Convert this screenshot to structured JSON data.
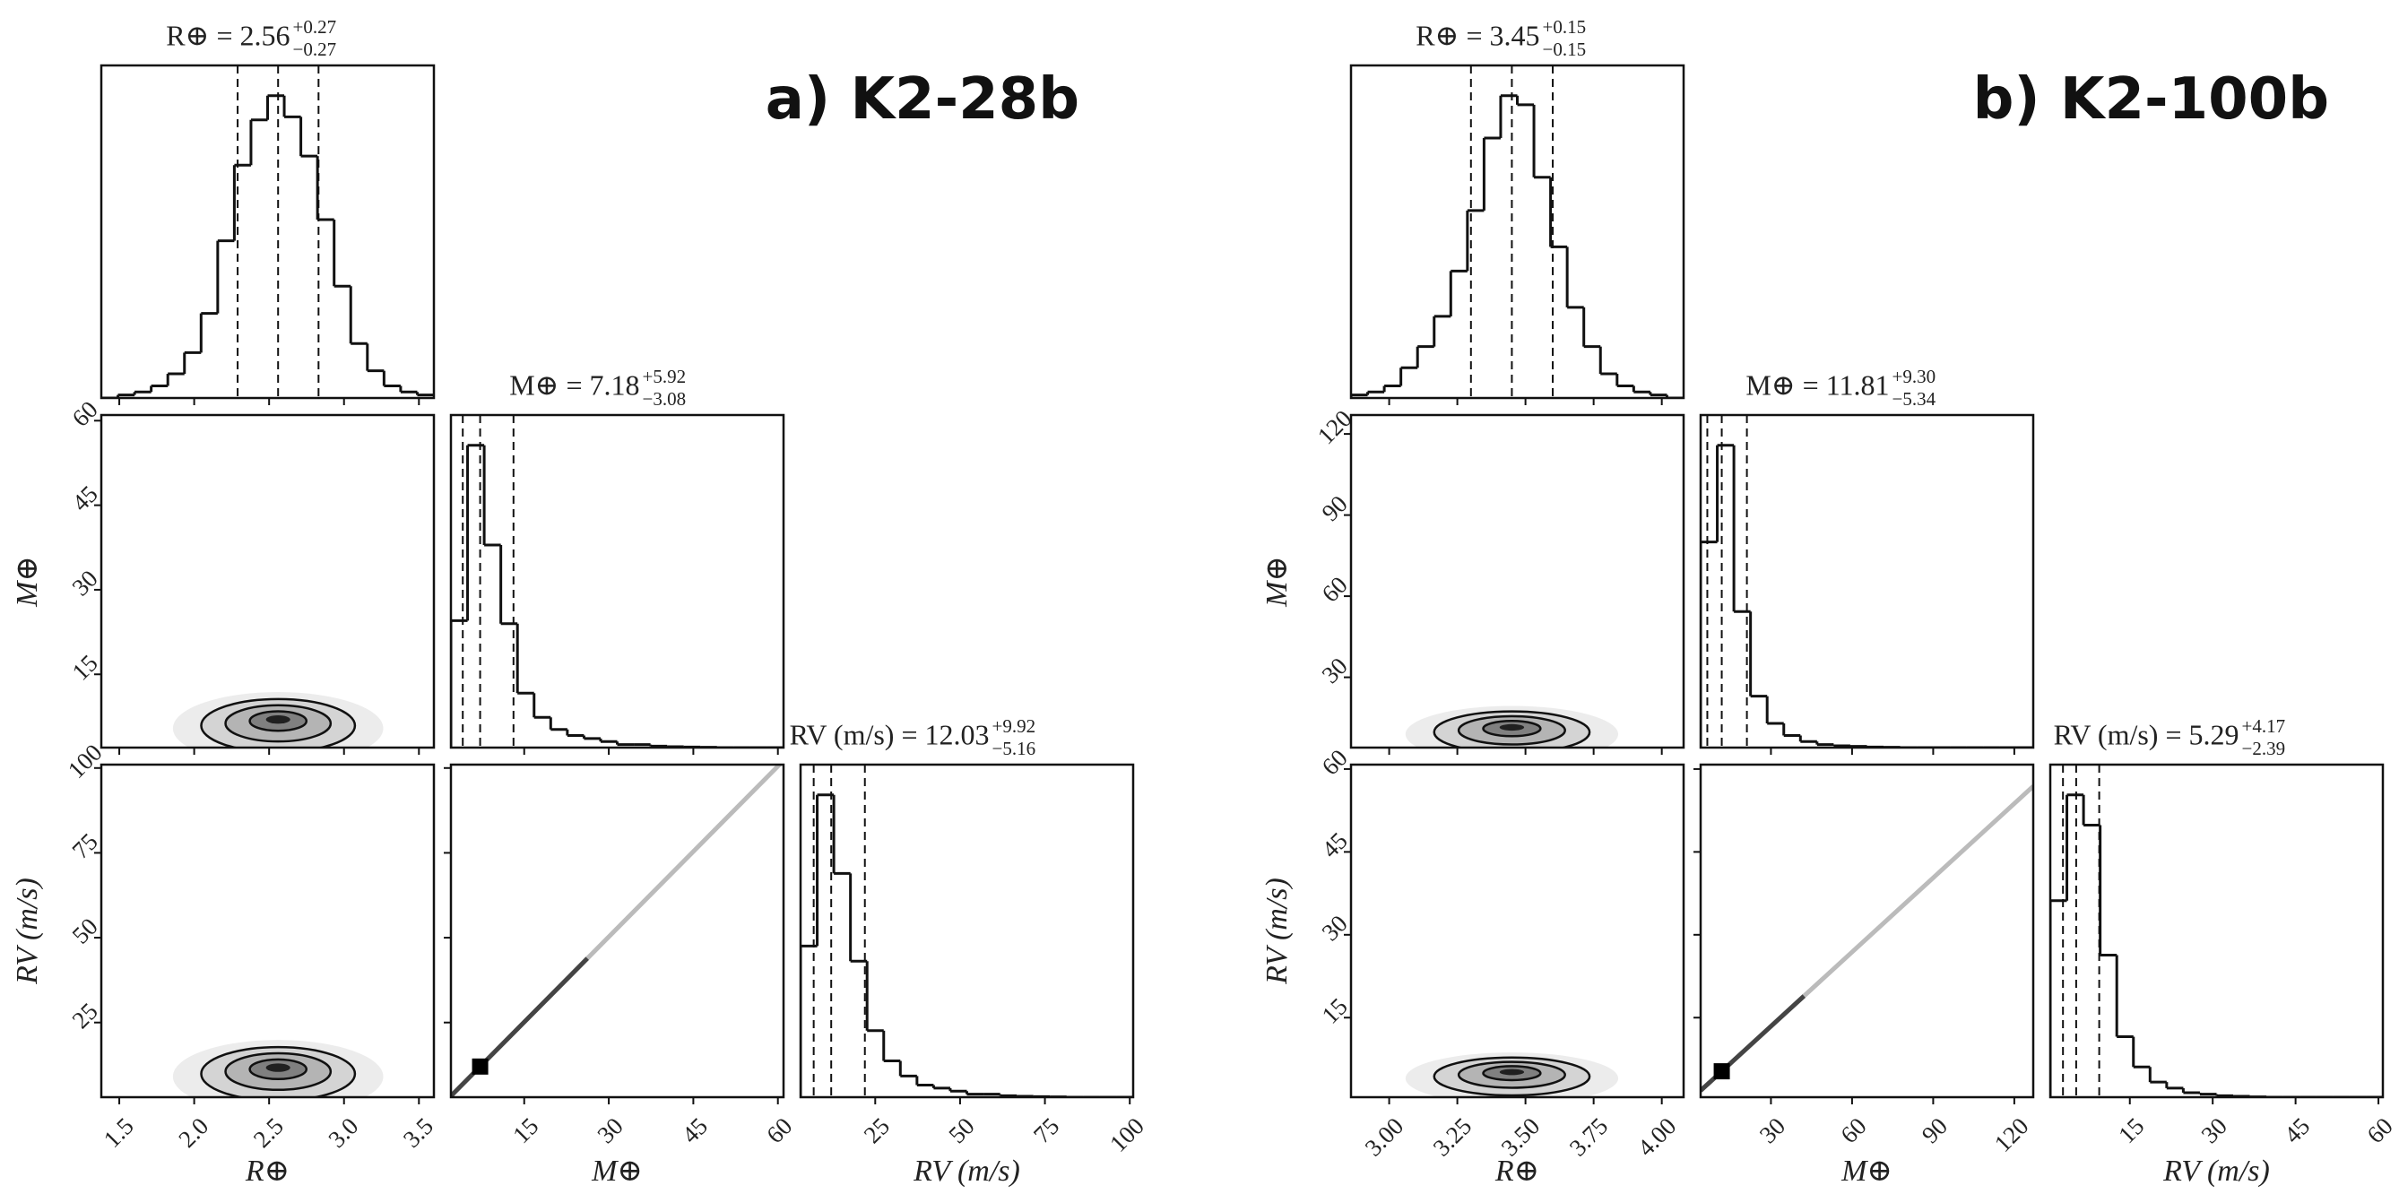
{
  "chart_data": [
    {
      "type": "corner",
      "label": "a) K2-28b",
      "hist_ylim": [
        0,
        110
      ],
      "params": [
        {
          "name": "R⊕",
          "title": "R⊕ = 2.56",
          "err_plus": "+0.27",
          "err_minus": "−0.27",
          "lim": [
            1.38,
            3.6
          ],
          "ticks": [
            1.5,
            {
              "value": 2,
              "label": "2.0"
            },
            2.5,
            {
              "value": 3,
              "label": "3.0"
            },
            3.5
          ],
          "quantiles": [
            2.29,
            2.56,
            2.83
          ],
          "bins": [
            1.38,
            1.491,
            1.602,
            1.713,
            1.824,
            1.935,
            2.046,
            2.157,
            2.268,
            2.379,
            2.49,
            2.601,
            2.712,
            2.823,
            2.934,
            3.045,
            3.156,
            3.267,
            3.378,
            3.489,
            3.6
          ],
          "counts": [
            0,
            1,
            2,
            4,
            8,
            15,
            28,
            52,
            77,
            92,
            100,
            93,
            80,
            59,
            37,
            18,
            9,
            4,
            2,
            1
          ]
        },
        {
          "name": "M⊕",
          "title": "M⊕ = 7.18",
          "err_plus": "+5.92",
          "err_minus": "−3.08",
          "lim": [
            2,
            61
          ],
          "ticks": [
            15,
            30,
            45,
            60
          ],
          "quantiles": [
            4.1,
            7.18,
            13.1
          ],
          "bins": [
            2,
            4.95,
            7.9,
            10.85,
            13.8,
            16.75,
            19.7,
            22.65,
            25.6,
            28.55,
            31.5,
            34.45,
            37.4,
            40.35,
            43.3,
            46.25,
            49.2,
            52.15,
            55.1,
            58.05,
            61
          ],
          "counts": [
            42,
            100,
            67,
            41,
            18,
            10,
            6,
            4,
            3,
            2,
            1,
            1,
            0.5,
            0.3,
            0.2,
            0.1,
            0,
            0,
            0,
            0
          ]
        },
        {
          "name": "RV (m/s)",
          "title": "RV (m/s) = 12.03",
          "err_plus": "+9.92",
          "err_minus": "−5.16",
          "lim": [
            3,
            101
          ],
          "ticks": [
            25,
            50,
            75,
            100
          ],
          "quantiles": [
            6.87,
            12.03,
            21.95
          ],
          "bins": [
            3,
            7.9,
            12.8,
            17.7,
            22.6,
            27.5,
            32.4,
            37.3,
            42.2,
            47.1,
            52,
            56.9,
            61.8,
            66.7,
            71.6,
            76.5,
            81.4,
            86.3,
            91.2,
            96.1,
            101
          ],
          "counts": [
            50,
            100,
            74,
            45,
            22,
            12,
            7,
            4,
            3,
            2,
            1,
            1,
            0.5,
            0.3,
            0.2,
            0.1,
            0,
            0,
            0,
            0
          ]
        }
      ]
    },
    {
      "type": "corner",
      "label": "b) K2-100b",
      "hist_ylim": [
        0,
        110
      ],
      "params": [
        {
          "name": "R⊕",
          "title": "R⊕ = 3.45",
          "err_plus": "+0.15",
          "err_minus": "−0.15",
          "lim": [
            2.86,
            4.08
          ],
          "ticks": [
            {
              "value": 3,
              "label": "3.00"
            },
            3.25,
            {
              "value": 3.5,
              "label": "3.50"
            },
            3.75,
            {
              "value": 4,
              "label": "4.00"
            }
          ],
          "quantiles": [
            3.3,
            3.45,
            3.6
          ],
          "bins": [
            2.86,
            2.921,
            2.982,
            3.043,
            3.104,
            3.165,
            3.226,
            3.287,
            3.348,
            3.409,
            3.47,
            3.531,
            3.592,
            3.653,
            3.714,
            3.775,
            3.836,
            3.897,
            3.958,
            4.019,
            4.08
          ],
          "counts": [
            1,
            2,
            4,
            10,
            17,
            27,
            42,
            62,
            86,
            100,
            97,
            73,
            50,
            30,
            17,
            8,
            4,
            2,
            1,
            0
          ]
        },
        {
          "name": "M⊕",
          "title": "M⊕ = 11.81",
          "err_plus": "+9.30",
          "err_minus": "−5.34",
          "lim": [
            4,
            127
          ],
          "ticks": [
            30,
            60,
            90,
            120
          ],
          "quantiles": [
            6.47,
            11.81,
            21.11
          ],
          "bins": [
            4,
            10.15,
            16.3,
            22.45,
            28.6,
            34.75,
            40.9,
            47.05,
            53.2,
            59.35,
            65.5,
            71.65,
            77.8,
            83.95,
            90.1,
            96.25,
            102.4,
            108.55,
            114.7,
            120.85,
            127
          ],
          "counts": [
            68,
            100,
            45,
            17,
            8,
            4,
            2,
            1,
            0.6,
            0.4,
            0.2,
            0.1,
            0,
            0,
            0,
            0,
            0,
            0,
            0,
            0
          ]
        },
        {
          "name": "RV (m/s)",
          "title": "RV (m/s) = 5.29",
          "err_plus": "+4.17",
          "err_minus": "−2.39",
          "lim": [
            0.6,
            60.8
          ],
          "ticks": [
            15,
            30,
            45,
            60
          ],
          "quantiles": [
            2.9,
            5.29,
            9.46
          ],
          "bins": [
            0.6,
            3.61,
            6.62,
            9.63,
            12.64,
            15.65,
            18.66,
            21.67,
            24.68,
            27.69,
            30.7,
            33.71,
            36.72,
            39.73,
            42.74,
            45.75,
            48.76,
            51.77,
            54.78,
            57.79,
            60.8
          ],
          "counts": [
            65,
            100,
            90,
            47,
            20,
            10,
            5,
            3,
            1.5,
            1,
            0.5,
            0.3,
            0.1,
            0,
            0,
            0,
            0,
            0,
            0,
            0
          ]
        }
      ]
    }
  ]
}
